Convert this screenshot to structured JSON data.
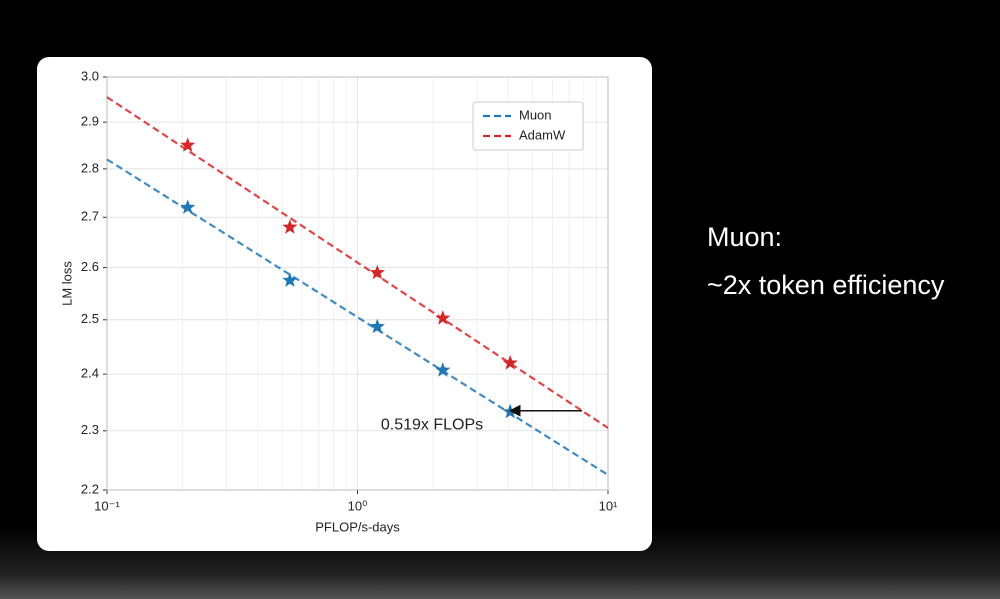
{
  "side_text": {
    "heading": "Muon:",
    "line": "~2x token efficiency"
  },
  "chart_data": {
    "type": "line",
    "xlabel": "PFLOP/s-days",
    "ylabel": "LM loss",
    "xscale": "log",
    "yscale": "log",
    "grid": true,
    "legend": "upper right",
    "xlim": [
      0.1,
      10
    ],
    "xticks": [
      {
        "value": 0.1,
        "label": "10⁻¹"
      },
      {
        "value": 1,
        "label": "10⁰"
      },
      {
        "value": 10,
        "label": "10¹"
      }
    ],
    "ylim": [
      2.2,
      3.0
    ],
    "yticks": [
      2.2,
      2.3,
      2.4,
      2.5,
      2.6,
      2.7,
      2.8,
      2.9,
      {
        "value": 3.0,
        "label": "3.0"
      }
    ],
    "series": [
      {
        "name": "Muon",
        "color": "#1f77b4",
        "x": [
          0.21,
          0.537,
          1.2,
          2.19,
          4.07
        ],
        "values": [
          2.72,
          2.575,
          2.487,
          2.407,
          2.333
        ],
        "fit": {
          "x": [
            0.1,
            10
          ],
          "values": [
            2.82,
            2.225
          ]
        }
      },
      {
        "name": "AdamW",
        "color": "#d62728",
        "x": [
          0.21,
          0.537,
          1.2,
          2.19,
          4.07
        ],
        "values": [
          2.85,
          2.68,
          2.59,
          2.503,
          2.42
        ],
        "fit": {
          "x": [
            0.1,
            10
          ],
          "values": [
            2.955,
            2.305
          ]
        }
      }
    ],
    "annotation": {
      "text": "0.519x FLOPs",
      "x": 1.24,
      "y": 2.31,
      "arrow": {
        "from_x": 7.87,
        "to_x": 4.07,
        "y": 2.335
      }
    }
  }
}
